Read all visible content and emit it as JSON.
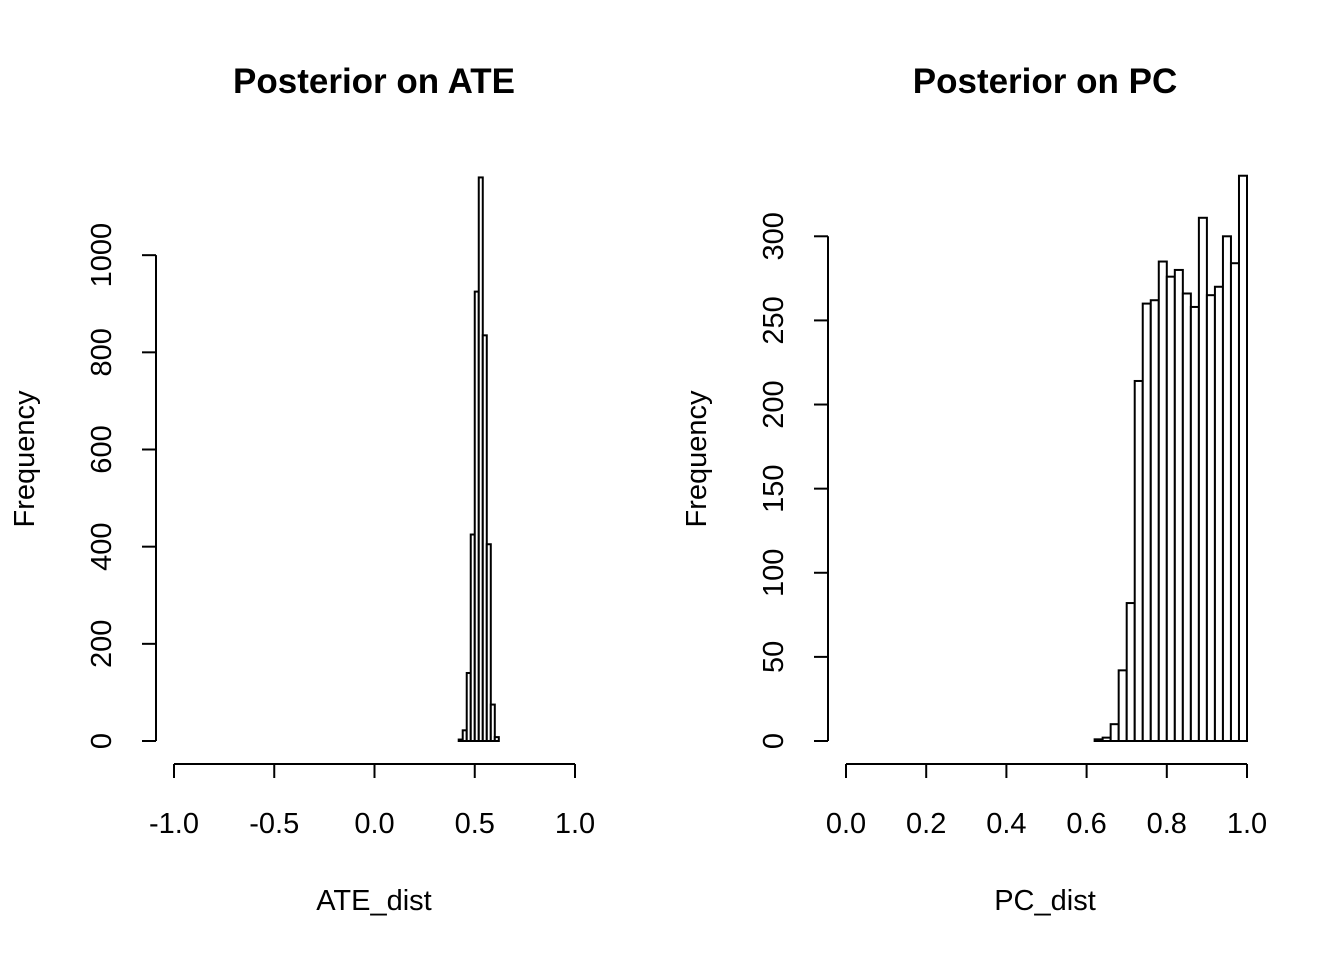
{
  "chart_data": [
    {
      "type": "bar",
      "title": "Posterior on ATE",
      "xlabel": "ATE_dist",
      "ylabel": "Frequency",
      "xlim": [
        -1.0,
        1.0
      ],
      "ylim": [
        0,
        1200
      ],
      "x_ticks": [
        "-1.0",
        "-0.5",
        "0.0",
        "0.5",
        "1.0"
      ],
      "x_tick_values": [
        -1.0,
        -0.5,
        0.0,
        0.5,
        1.0
      ],
      "y_ticks": [
        "0",
        "200",
        "400",
        "600",
        "800",
        "1000"
      ],
      "y_tick_values": [
        0,
        200,
        400,
        600,
        800,
        1000
      ],
      "bin_width": 0.02,
      "bins": [
        {
          "x0": 0.42,
          "x1": 0.44,
          "count": 3
        },
        {
          "x0": 0.44,
          "x1": 0.46,
          "count": 22
        },
        {
          "x0": 0.46,
          "x1": 0.48,
          "count": 140
        },
        {
          "x0": 0.48,
          "x1": 0.5,
          "count": 425
        },
        {
          "x0": 0.5,
          "x1": 0.52,
          "count": 925
        },
        {
          "x0": 0.52,
          "x1": 0.54,
          "count": 1160
        },
        {
          "x0": 0.54,
          "x1": 0.56,
          "count": 835
        },
        {
          "x0": 0.56,
          "x1": 0.58,
          "count": 405
        },
        {
          "x0": 0.58,
          "x1": 0.6,
          "count": 75
        },
        {
          "x0": 0.6,
          "x1": 0.62,
          "count": 8
        }
      ]
    },
    {
      "type": "bar",
      "title": "Posterior on PC",
      "xlabel": "PC_dist",
      "ylabel": "Frequency",
      "xlim": [
        0.0,
        1.0
      ],
      "ylim": [
        0,
        340
      ],
      "x_ticks": [
        "0.0",
        "0.2",
        "0.4",
        "0.6",
        "0.8",
        "1.0"
      ],
      "x_tick_values": [
        0.0,
        0.2,
        0.4,
        0.6,
        0.8,
        1.0
      ],
      "y_ticks": [
        "0",
        "50",
        "100",
        "150",
        "200",
        "250",
        "300"
      ],
      "y_tick_values": [
        0,
        50,
        100,
        150,
        200,
        250,
        300
      ],
      "bin_width": 0.02,
      "bins": [
        {
          "x0": 0.62,
          "x1": 0.64,
          "count": 1
        },
        {
          "x0": 0.64,
          "x1": 0.66,
          "count": 2
        },
        {
          "x0": 0.66,
          "x1": 0.68,
          "count": 10
        },
        {
          "x0": 0.68,
          "x1": 0.7,
          "count": 42
        },
        {
          "x0": 0.7,
          "x1": 0.72,
          "count": 82
        },
        {
          "x0": 0.72,
          "x1": 0.74,
          "count": 214
        },
        {
          "x0": 0.74,
          "x1": 0.76,
          "count": 260
        },
        {
          "x0": 0.76,
          "x1": 0.78,
          "count": 262
        },
        {
          "x0": 0.78,
          "x1": 0.8,
          "count": 285
        },
        {
          "x0": 0.8,
          "x1": 0.82,
          "count": 276
        },
        {
          "x0": 0.82,
          "x1": 0.84,
          "count": 280
        },
        {
          "x0": 0.84,
          "x1": 0.86,
          "count": 266
        },
        {
          "x0": 0.86,
          "x1": 0.88,
          "count": 258
        },
        {
          "x0": 0.88,
          "x1": 0.9,
          "count": 311
        },
        {
          "x0": 0.9,
          "x1": 0.92,
          "count": 265
        },
        {
          "x0": 0.92,
          "x1": 0.94,
          "count": 270
        },
        {
          "x0": 0.94,
          "x1": 0.96,
          "count": 300
        },
        {
          "x0": 0.96,
          "x1": 0.98,
          "count": 284
        },
        {
          "x0": 0.98,
          "x1": 1.0,
          "count": 336
        }
      ]
    }
  ]
}
